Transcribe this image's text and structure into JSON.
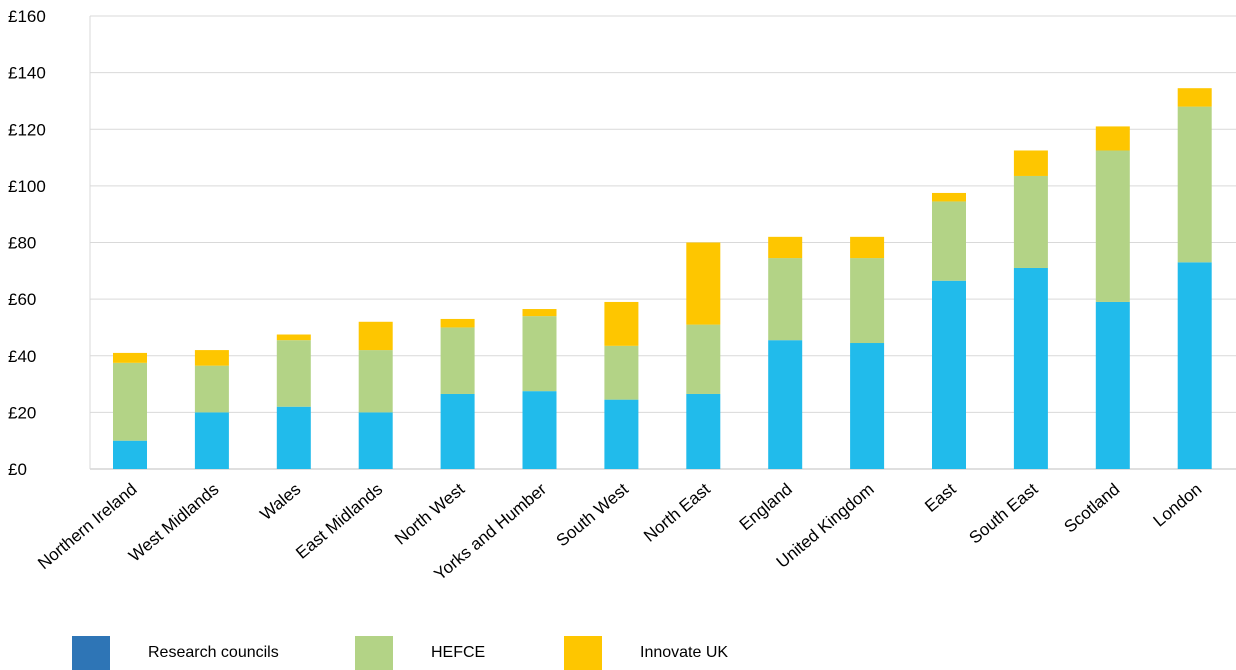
{
  "chart_data": {
    "type": "bar",
    "stacked": true,
    "title": "",
    "xlabel": "",
    "ylabel": "",
    "ylim": [
      0,
      160
    ],
    "yticks": [
      "£0",
      "£20",
      "£40",
      "£60",
      "£80",
      "£100",
      "£120",
      "£140",
      "£160"
    ],
    "grid": true,
    "legend_position": "bottom",
    "categories": [
      "Northern Ireland",
      "West Midlands",
      "Wales",
      "East Midlands",
      "North West",
      "Yorks and Humber",
      "South West",
      "North East",
      "England",
      "United Kingdom",
      "East",
      "South East",
      "Scotland",
      "London"
    ],
    "series": [
      {
        "name": "Research councils",
        "color": "#21BBEB",
        "legend_color": "#2E75B6",
        "values": [
          10,
          20,
          22,
          20,
          26.5,
          27.5,
          24.5,
          26.5,
          45.5,
          44.5,
          66.5,
          71,
          59,
          73
        ]
      },
      {
        "name": "HEFCE",
        "color": "#B3D386",
        "legend_color": "#B3D386",
        "values": [
          27.5,
          16.5,
          23.5,
          22,
          23.5,
          26.5,
          19,
          24.5,
          29,
          30,
          28,
          32.5,
          53.5,
          55
        ]
      },
      {
        "name": "Innovate UK",
        "color": "#FEC600",
        "legend_color": "#FEC600",
        "values": [
          3.5,
          5.5,
          2,
          10,
          3,
          2.5,
          15.5,
          29,
          7.5,
          7.5,
          3,
          9,
          8.5,
          6.5
        ]
      }
    ]
  }
}
